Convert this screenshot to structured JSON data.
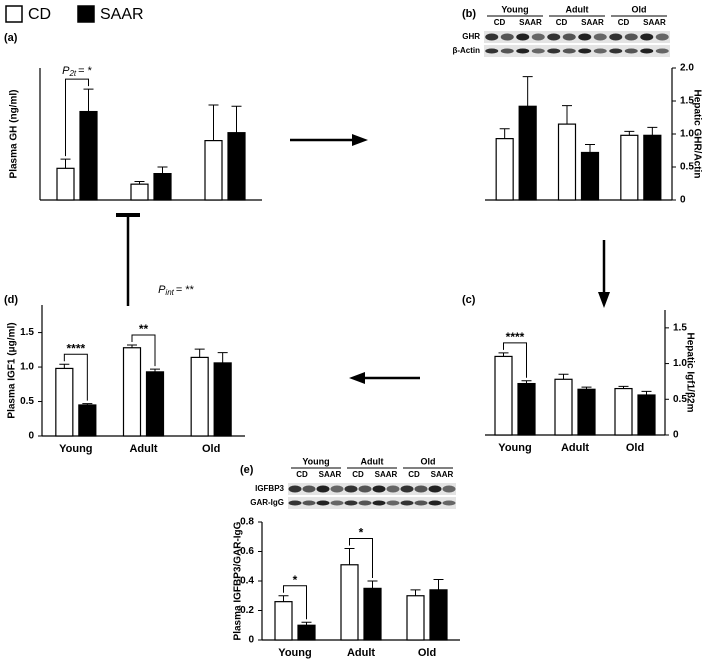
{
  "legend": [
    {
      "name": "CD",
      "color": "#ffffff"
    },
    {
      "name": "SAAR",
      "color": "#000000"
    }
  ],
  "chart_data": [
    {
      "panel": "(a)",
      "type": "bar",
      "ylabel": "Plasma GH (ng/ml)",
      "categories": [
        null,
        null,
        null
      ],
      "series": [
        {
          "values": [
            24,
            12,
            45
          ],
          "errors": [
            7,
            2,
            27
          ]
        },
        {
          "values": [
            67,
            20,
            51
          ],
          "errors": [
            17,
            5,
            20
          ]
        }
      ],
      "ylim": [
        0,
        100
      ],
      "annotations": [
        {
          "symbol": "P",
          "subscript": "2t",
          "text": "= *"
        }
      ]
    },
    {
      "panel": "(b)",
      "type": "bar",
      "ylabel": "Hepatic GHR/Actin",
      "categories": [
        null,
        null,
        null
      ],
      "series": [
        {
          "values": [
            0.93,
            1.15,
            0.98
          ],
          "errors": [
            0.15,
            0.28,
            0.06
          ]
        },
        {
          "values": [
            1.42,
            0.72,
            0.98
          ],
          "errors": [
            0.45,
            0.12,
            0.12
          ]
        }
      ],
      "ylim": [
        0,
        2
      ],
      "yticks": [
        0,
        0.5,
        {
          "value": 1,
          "label": "1.0"
        },
        1.5,
        {
          "value": 2,
          "label": "2.0"
        }
      ],
      "blot": {
        "groups": [
          "Young",
          "Adult",
          "Old"
        ],
        "lanes": [
          "CD",
          "SAAR",
          "CD",
          "SAAR",
          "CD",
          "SAAR"
        ],
        "rows": [
          "GHR",
          "β-Actin"
        ]
      }
    },
    {
      "panel": "(c)",
      "type": "bar",
      "ylabel": "Hepatic Igf1/β2m",
      "categories": [
        "Young",
        "Adult",
        "Old"
      ],
      "series": [
        {
          "values": [
            1.1,
            0.78,
            0.65
          ],
          "errors": [
            0.05,
            0.07,
            0.03
          ]
        },
        {
          "values": [
            0.72,
            0.64,
            0.56
          ],
          "errors": [
            0.04,
            0.03,
            0.05
          ]
        }
      ],
      "ylim": [
        0,
        1.75
      ],
      "yticks": [
        0,
        0.5,
        {
          "value": 1,
          "label": "1.0"
        },
        1.5
      ],
      "annotations": [
        "****"
      ]
    },
    {
      "panel": "(d)",
      "type": "bar",
      "ylabel": "Plasma IGF1 (μg/ml)",
      "categories": [
        "Young",
        "Adult",
        "Old"
      ],
      "series": [
        {
          "values": [
            0.98,
            1.28,
            1.14
          ],
          "errors": [
            0.06,
            0.04,
            0.12
          ]
        },
        {
          "values": [
            0.45,
            0.93,
            1.06
          ],
          "errors": [
            0.02,
            0.04,
            0.15
          ]
        }
      ],
      "ylim": [
        0,
        1.9
      ],
      "yticks": [
        0,
        0.5,
        {
          "value": 1,
          "label": "1.0"
        },
        1.5
      ],
      "annotations": [
        "****",
        "**",
        {
          "symbol": "P",
          "subscript": "int",
          "text": "= **"
        }
      ]
    },
    {
      "panel": "(e)",
      "type": "bar",
      "ylabel": "Plasma IGFBP3/GAR-IgG",
      "categories": [
        "Young",
        "Adult",
        "Old"
      ],
      "series": [
        {
          "values": [
            0.26,
            0.51,
            0.3
          ],
          "errors": [
            0.04,
            0.11,
            0.04
          ]
        },
        {
          "values": [
            0.1,
            0.35,
            0.34
          ],
          "errors": [
            0.02,
            0.05,
            0.07
          ]
        }
      ],
      "ylim": [
        0,
        0.8
      ],
      "yticks": [
        0,
        0.2,
        0.4,
        0.6,
        0.8
      ],
      "annotations": [
        "*",
        "*"
      ],
      "blot": {
        "groups": [
          "Young",
          "Adult",
          "Old"
        ],
        "lanes": [
          "CD",
          "SAAR",
          "CD",
          "SAAR",
          "CD",
          "SAAR"
        ],
        "rows": [
          "IGFBP3",
          "GAR-IgG"
        ]
      }
    }
  ]
}
